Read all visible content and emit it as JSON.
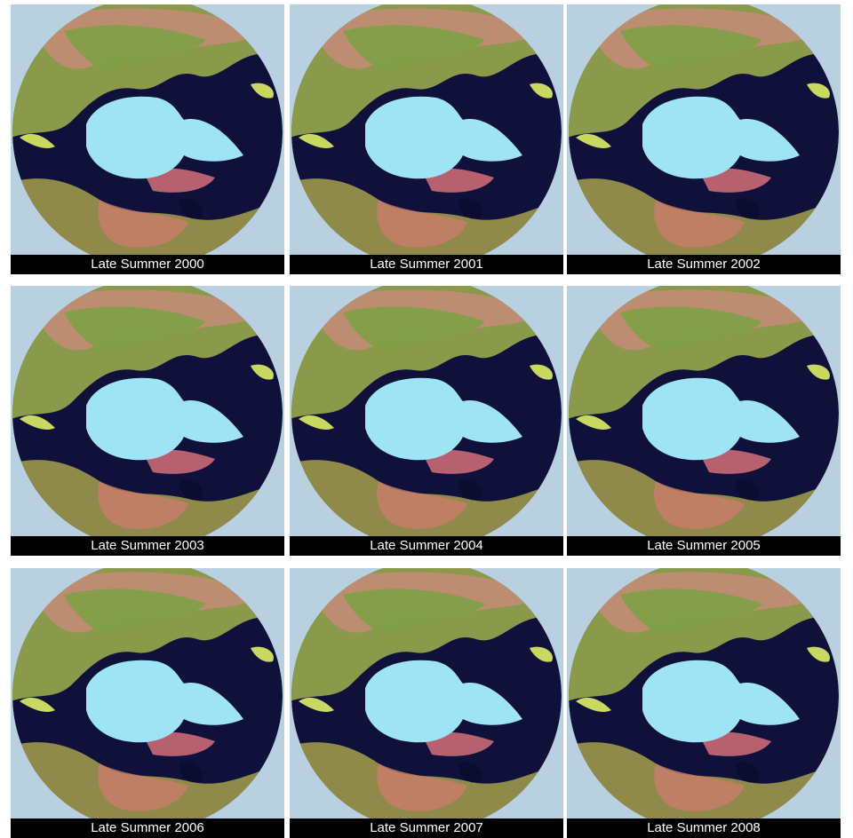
{
  "panels": [
    {
      "caption": "Late Summer 2000"
    },
    {
      "caption": "Late Summer 2001"
    },
    {
      "caption": "Late Summer 2002"
    },
    {
      "caption": "Late Summer 2003"
    },
    {
      "caption": "Late Summer 2004"
    },
    {
      "caption": "Late Summer 2005"
    },
    {
      "caption": "Late Summer 2006"
    },
    {
      "caption": "Late Summer 2007"
    },
    {
      "caption": "Late Summer 2008"
    }
  ]
}
